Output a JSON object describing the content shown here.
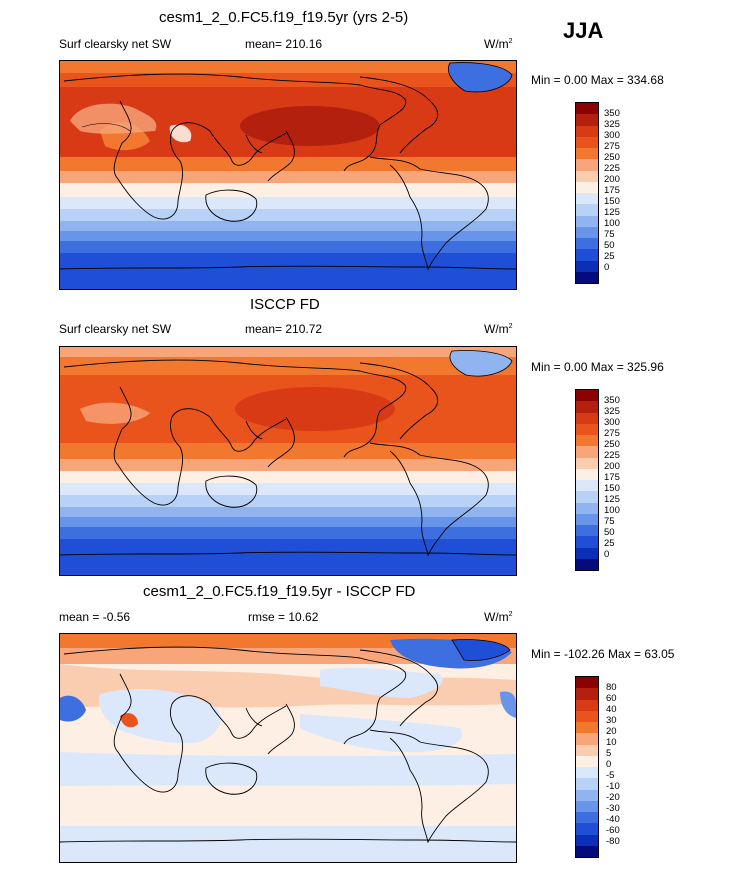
{
  "season": "JJA",
  "panels": [
    {
      "title": "cesm1_2_0.FC5.f19_f19.5yr (yrs 2-5)",
      "left_label": "Surf clearsky net SW",
      "center_label": "mean= 210.16",
      "units": "W/m",
      "units_sup": "2",
      "minmax": "Min =   0.00 Max = 334.68",
      "colorbar_labels": [
        "350",
        "325",
        "300",
        "275",
        "250",
        "225",
        "200",
        "175",
        "150",
        "125",
        "100",
        "75",
        "50",
        "25",
        "0"
      ],
      "colorbar_colors": [
        "#8b0000",
        "#b3200e",
        "#d83a16",
        "#e9541c",
        "#f2782f",
        "#f8a57a",
        "#fbcdb0",
        "#fdefe4",
        "#dbe8fb",
        "#b7d1f7",
        "#8fb4f0",
        "#6894ea",
        "#3e6fe0",
        "#1f4fd6",
        "#0c2fb7",
        "#040c7d"
      ]
    },
    {
      "title": "ISCCP FD",
      "left_label": "Surf clearsky net SW",
      "center_label": "mean= 210.72",
      "units": "W/m",
      "units_sup": "2",
      "minmax": "Min =   0.00 Max = 325.96",
      "colorbar_labels": [
        "350",
        "325",
        "300",
        "275",
        "250",
        "225",
        "200",
        "175",
        "150",
        "125",
        "100",
        "75",
        "50",
        "25",
        "0"
      ],
      "colorbar_colors": [
        "#8b0000",
        "#b3200e",
        "#d83a16",
        "#e9541c",
        "#f2782f",
        "#f8a57a",
        "#fbcdb0",
        "#fdefe4",
        "#dbe8fb",
        "#b7d1f7",
        "#8fb4f0",
        "#6894ea",
        "#3e6fe0",
        "#1f4fd6",
        "#0c2fb7",
        "#040c7d"
      ]
    },
    {
      "title": "cesm1_2_0.FC5.f19_f19.5yr - ISCCP FD",
      "left_label": "mean =  -0.56",
      "center_label": "rmse =  10.62",
      "units": "W/m",
      "units_sup": "2",
      "minmax": "Min = -102.26 Max =  63.05",
      "colorbar_labels": [
        "80",
        "60",
        "40",
        "30",
        "20",
        "10",
        "5",
        "0",
        "-5",
        "-10",
        "-20",
        "-30",
        "-40",
        "-60",
        "-80"
      ],
      "colorbar_colors": [
        "#8b0000",
        "#b3200e",
        "#d83a16",
        "#e9541c",
        "#f2782f",
        "#f8a57a",
        "#fbcdb0",
        "#fdefe4",
        "#dbe8fb",
        "#b7d1f7",
        "#8fb4f0",
        "#6894ea",
        "#3e6fe0",
        "#1f4fd6",
        "#0c2fb7",
        "#040c7d"
      ]
    }
  ]
}
